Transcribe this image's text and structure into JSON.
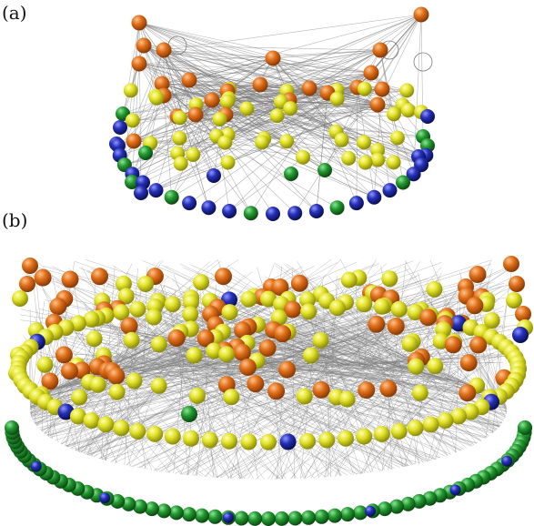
{
  "panels": [
    {
      "label": "(a)"
    },
    {
      "label": "(b)"
    }
  ],
  "node_colors": {
    "orange": "#d9660f",
    "yellow": "#d8d81c",
    "green": "#1f8a2a",
    "blue": "#1f2aa8",
    "edge": "#7a7a7a"
  }
}
